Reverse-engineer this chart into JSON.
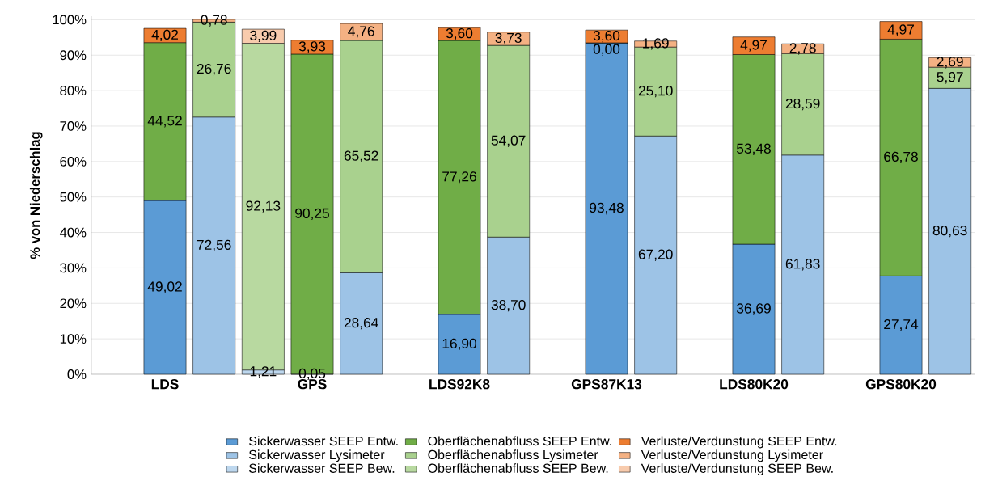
{
  "chart_data": {
    "type": "bar",
    "stacked": true,
    "ylabel": "% von Niederschlag",
    "categories": [
      null,
      "LDS",
      null,
      null,
      "GPS",
      null,
      null,
      "LDS92K8",
      null,
      null,
      "GPS87K13",
      null,
      null,
      "LDS80K20",
      null,
      null,
      "GPS80K20",
      null
    ],
    "ylim": [
      0,
      101
    ],
    "yticks": [
      {
        "value": 0,
        "label": "0%"
      },
      {
        "value": 10,
        "label": "10%"
      },
      {
        "value": 20,
        "label": "20%"
      },
      {
        "value": 30,
        "label": "30%"
      },
      {
        "value": 40,
        "label": "40%"
      },
      {
        "value": 50,
        "label": "50%"
      },
      {
        "value": 60,
        "label": "60%"
      },
      {
        "value": 70,
        "label": "70%"
      },
      {
        "value": 80,
        "label": "80%"
      },
      {
        "value": 90,
        "label": "90%"
      },
      {
        "value": 100,
        "label": "100%"
      }
    ],
    "grid": "y",
    "legend": "bottom",
    "series": [
      {
        "name": "Sickerwasser SEEP Entw.",
        "color": "#5b9bd5",
        "values": [
          null,
          49.02,
          null,
          null,
          0.05,
          null,
          null,
          16.9,
          null,
          null,
          93.48,
          null,
          null,
          36.69,
          null,
          null,
          27.74,
          null
        ],
        "value_labels": [
          null,
          "49,02",
          null,
          null,
          "0,05",
          null,
          null,
          "16,90",
          null,
          null,
          "93,48",
          null,
          null,
          "36,69",
          null,
          null,
          "27,74",
          null
        ]
      },
      {
        "name": "Oberflächenabfluss SEEP Entw.",
        "color": "#70ad47",
        "values": [
          null,
          44.52,
          null,
          null,
          90.25,
          null,
          null,
          77.26,
          null,
          null,
          0.0,
          null,
          null,
          53.48,
          null,
          null,
          66.78,
          null
        ],
        "value_labels": [
          null,
          "44,52",
          null,
          null,
          "90,25",
          null,
          null,
          "77,26",
          null,
          null,
          "0,00",
          null,
          null,
          "53,48",
          null,
          null,
          "66,78",
          null
        ]
      },
      {
        "name": "Verluste/Verdunstung SEEP Entw.",
        "color": "#ed7d31",
        "values": [
          null,
          4.02,
          null,
          null,
          3.93,
          null,
          null,
          3.6,
          null,
          null,
          3.6,
          null,
          null,
          4.97,
          null,
          null,
          4.97,
          null
        ],
        "value_labels": [
          null,
          "4,02",
          null,
          null,
          "3,93",
          null,
          null,
          "3,60",
          null,
          null,
          "3,60",
          null,
          null,
          "4,97",
          null,
          null,
          "4,97",
          null
        ]
      },
      {
        "name": "Sickerwasser Lysimeter",
        "color": "#9dc3e6",
        "values": [
          null,
          null,
          72.56,
          null,
          null,
          28.64,
          null,
          null,
          38.7,
          null,
          null,
          67.2,
          null,
          null,
          61.83,
          null,
          null,
          80.63
        ],
        "value_labels": [
          null,
          null,
          "72,56",
          null,
          null,
          "28,64",
          null,
          null,
          "38,70",
          null,
          null,
          "67,20",
          null,
          null,
          "61,83",
          null,
          null,
          "80,63"
        ]
      },
      {
        "name": "Oberflächenabfluss Lysimeter",
        "color": "#a9d18e",
        "values": [
          null,
          null,
          26.76,
          null,
          null,
          65.52,
          null,
          null,
          54.07,
          null,
          null,
          25.1,
          null,
          null,
          28.59,
          null,
          null,
          5.97
        ],
        "value_labels": [
          null,
          null,
          "26,76",
          null,
          null,
          "65,52",
          null,
          null,
          "54,07",
          null,
          null,
          "25,10",
          null,
          null,
          "28,59",
          null,
          null,
          "5,97"
        ]
      },
      {
        "name": "Verluste/Verdunstung Lysimeter",
        "color": "#f4b183",
        "values": [
          null,
          null,
          0.78,
          null,
          null,
          4.76,
          null,
          null,
          3.73,
          null,
          null,
          1.69,
          null,
          null,
          2.78,
          null,
          null,
          2.69
        ],
        "value_labels": [
          null,
          null,
          "0,78",
          null,
          null,
          "4,76",
          null,
          null,
          "3,73",
          null,
          null,
          "1,69",
          null,
          null,
          "2,78",
          null,
          null,
          "2,69"
        ]
      },
      {
        "name": "Sickerwasser SEEP Bew.",
        "color": "#bdd7ee",
        "values": [
          null,
          null,
          null,
          1.21,
          null,
          null,
          null,
          null,
          null,
          null,
          null,
          null,
          null,
          null,
          null,
          null,
          null,
          null
        ],
        "value_labels": [
          null,
          null,
          null,
          "1,21",
          null,
          null,
          null,
          null,
          null,
          null,
          null,
          null,
          null,
          null,
          null,
          null,
          null,
          null
        ]
      },
      {
        "name": "Oberflächenabfluss SEEP Bew.",
        "color": "#b8d9a0",
        "values": [
          null,
          null,
          null,
          92.13,
          null,
          null,
          null,
          null,
          null,
          null,
          null,
          null,
          null,
          null,
          null,
          null,
          null,
          null
        ],
        "value_labels": [
          null,
          null,
          null,
          "92,13",
          null,
          null,
          null,
          null,
          null,
          null,
          null,
          null,
          null,
          null,
          null,
          null,
          null,
          null
        ]
      },
      {
        "name": "Verluste/Verdunstung SEEP Bew.",
        "color": "#f8cbad",
        "values": [
          null,
          null,
          null,
          3.99,
          null,
          null,
          null,
          null,
          null,
          null,
          null,
          null,
          null,
          null,
          null,
          null,
          null,
          null
        ],
        "value_labels": [
          null,
          null,
          null,
          "3,99",
          null,
          null,
          null,
          null,
          null,
          null,
          null,
          null,
          null,
          null,
          null,
          null,
          null,
          null
        ]
      }
    ]
  }
}
